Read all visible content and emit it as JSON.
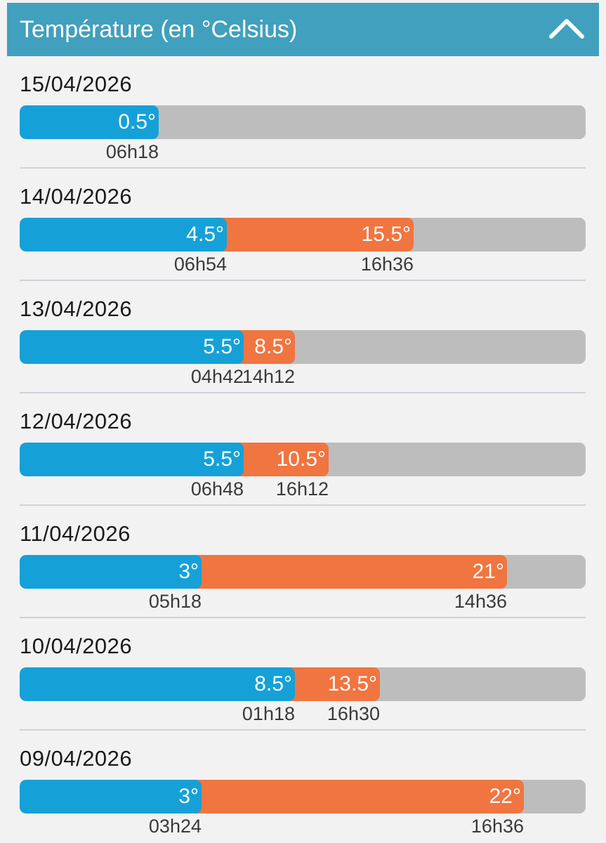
{
  "header": {
    "title": "Température (en °Celsius)",
    "collapse_icon": "chevron-up-icon"
  },
  "colors": {
    "header_bg": "#41a0bd",
    "min_bar": "#15a1d8",
    "max_bar": "#f07540",
    "track": "#bdbdbd"
  },
  "scale": {
    "min": 0,
    "max": 31
  },
  "days": [
    {
      "date": "15/04/2026",
      "min": {
        "value": 0.5,
        "label": "0.5°",
        "time": "06h18"
      },
      "max": null
    },
    {
      "date": "14/04/2026",
      "min": {
        "value": 4.5,
        "label": "4.5°",
        "time": "06h54"
      },
      "max": {
        "value": 15.5,
        "label": "15.5°",
        "time": "16h36"
      }
    },
    {
      "date": "13/04/2026",
      "min": {
        "value": 5.5,
        "label": "5.5°",
        "time": "04h42"
      },
      "max": {
        "value": 8.5,
        "label": "8.5°",
        "time": "14h12"
      }
    },
    {
      "date": "12/04/2026",
      "min": {
        "value": 5.5,
        "label": "5.5°",
        "time": "06h48"
      },
      "max": {
        "value": 10.5,
        "label": "10.5°",
        "time": "16h12"
      }
    },
    {
      "date": "11/04/2026",
      "min": {
        "value": 3,
        "label": "3°",
        "time": "05h18"
      },
      "max": {
        "value": 21,
        "label": "21°",
        "time": "14h36"
      }
    },
    {
      "date": "10/04/2026",
      "min": {
        "value": 8.5,
        "label": "8.5°",
        "time": "01h18"
      },
      "max": {
        "value": 13.5,
        "label": "13.5°",
        "time": "16h30"
      }
    },
    {
      "date": "09/04/2026",
      "min": {
        "value": 3,
        "label": "3°",
        "time": "03h24"
      },
      "max": {
        "value": 22,
        "label": "22°",
        "time": "16h36"
      }
    }
  ]
}
